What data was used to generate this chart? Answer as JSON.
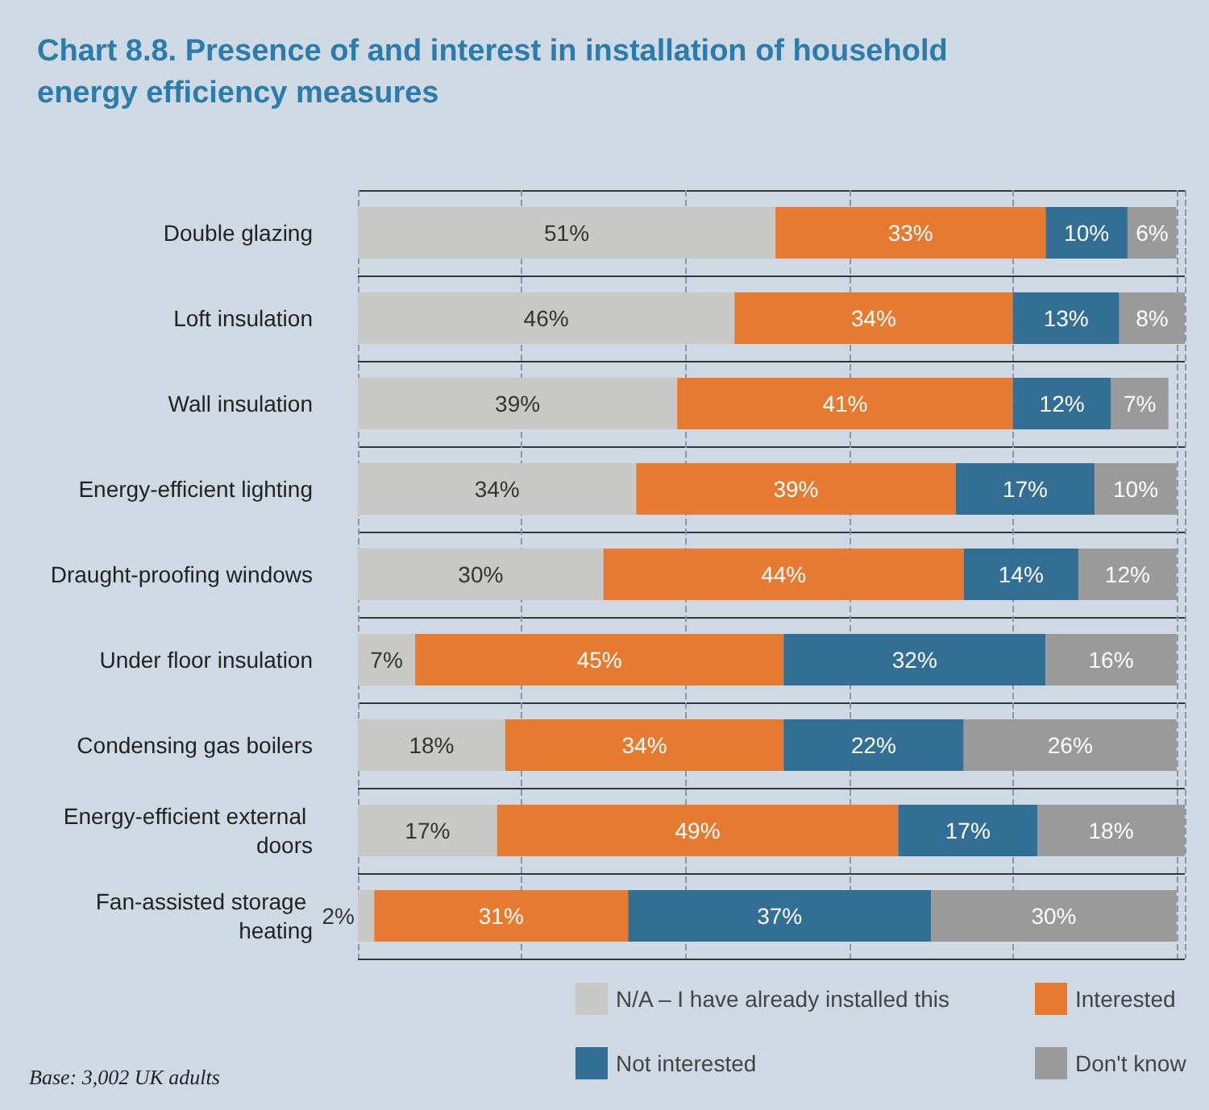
{
  "chart_data": {
    "type": "bar",
    "orientation": "horizontal",
    "stacked": true,
    "title": "Chart 8.8. Presence of and interest in installation of household energy efficiency measures",
    "categories": [
      "Double glazing",
      "Loft insulation",
      "Wall insulation",
      "Energy-efficient lighting",
      "Draught-proofing windows",
      "Under floor insulation",
      "Condensing gas boilers",
      "Energy-efficient external doors",
      "Fan-assisted storage heating"
    ],
    "series": [
      {
        "name": "N/A – I have already installed this",
        "color": "#c8c8c6",
        "values": [
          51,
          46,
          39,
          34,
          30,
          7,
          18,
          17,
          2
        ],
        "value_labels": [
          "51%",
          "46%",
          "39%",
          "34%",
          "30%",
          "7%",
          "18%",
          "17%",
          "2%"
        ]
      },
      {
        "name": "Interested",
        "color": "#e67a30",
        "values": [
          33,
          34,
          41,
          39,
          44,
          45,
          34,
          49,
          31
        ],
        "value_labels": [
          "33%",
          "34%",
          "41%",
          "39%",
          "44%",
          "45%",
          "34%",
          "49%",
          "31%"
        ]
      },
      {
        "name": "Not interested",
        "color": "#336f95",
        "values": [
          10,
          13,
          12,
          17,
          14,
          32,
          22,
          17,
          37
        ],
        "value_labels": [
          "10%",
          "13%",
          "12%",
          "17%",
          "14%",
          "32%",
          "22%",
          "17%",
          "37%"
        ]
      },
      {
        "name": "Don't know",
        "color": "#9a9a9a",
        "values": [
          6,
          8,
          7,
          10,
          12,
          16,
          26,
          18,
          30
        ],
        "value_labels": [
          "6%",
          "8%",
          "7%",
          "10%",
          "12%",
          "16%",
          "26%",
          "18%",
          "30%"
        ]
      }
    ],
    "tick_labels": "y",
    "grid": true,
    "legend": "bottom",
    "annotations": [
      "Base: 3,002 UK adults"
    ]
  }
}
